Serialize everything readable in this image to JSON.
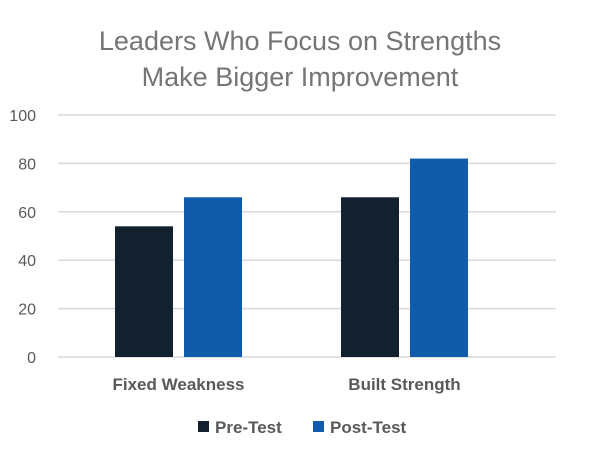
{
  "chart_data": {
    "type": "bar",
    "title_lines": [
      "Leaders Who Focus on Strengths",
      "Make Bigger Improvement"
    ],
    "categories": [
      "Fixed Weakness",
      "Built Strength"
    ],
    "series": [
      {
        "name": "Pre-Test",
        "values": [
          54,
          66
        ],
        "color": "#13202d"
      },
      {
        "name": "Post-Test",
        "values": [
          66,
          82
        ],
        "color": "#105caa"
      }
    ],
    "ylim": [
      0,
      100
    ],
    "yticks": [
      0,
      20,
      40,
      60,
      80,
      100
    ],
    "grid": true,
    "gridColor": "#d9d9d9",
    "legend": "bottom"
  }
}
